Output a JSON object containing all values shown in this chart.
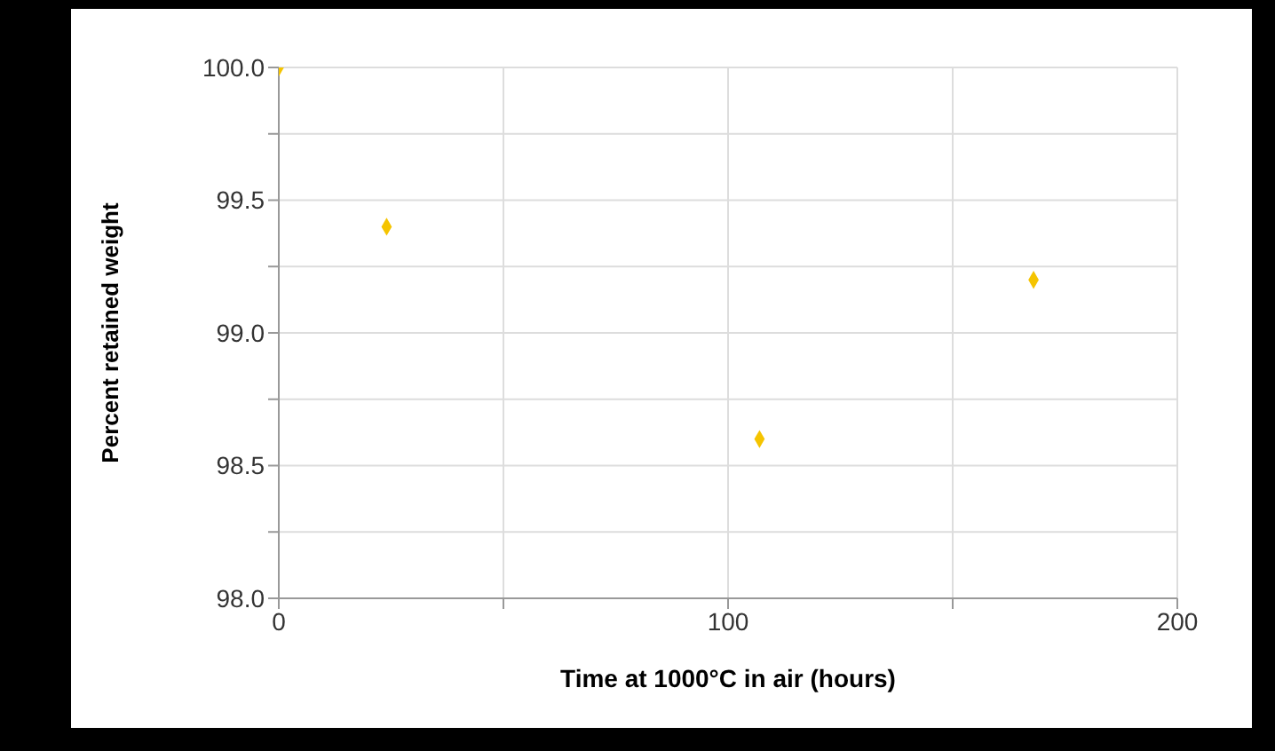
{
  "chart_data": {
    "type": "scatter",
    "xlabel": "Time at 1000°C in air (hours)",
    "ylabel": "Percent retained weight",
    "x": [
      0,
      24,
      107,
      168
    ],
    "series": [
      {
        "color": "#f5c400",
        "values": [
          100.0,
          99.4,
          98.6,
          99.2
        ]
      }
    ],
    "xlim": [
      0,
      200
    ],
    "xticks": [
      0,
      {
        "value": 50,
        "label": null
      },
      100,
      {
        "value": 150,
        "label": null
      },
      200
    ],
    "ylim": [
      98.0,
      100.0
    ],
    "yticks": [
      {
        "value": 98.0,
        "label": "98.0"
      },
      {
        "value": 98.25,
        "label": null
      },
      {
        "value": 98.5,
        "label": "98.5"
      },
      {
        "value": 98.75,
        "label": null
      },
      {
        "value": 99.0,
        "label": "99.0"
      },
      {
        "value": 99.25,
        "label": null
      },
      {
        "value": 99.5,
        "label": "99.5"
      },
      {
        "value": 99.75,
        "label": null
      },
      {
        "value": 100.0,
        "label": "100.0"
      }
    ],
    "grid": true,
    "marker": "diamond"
  }
}
